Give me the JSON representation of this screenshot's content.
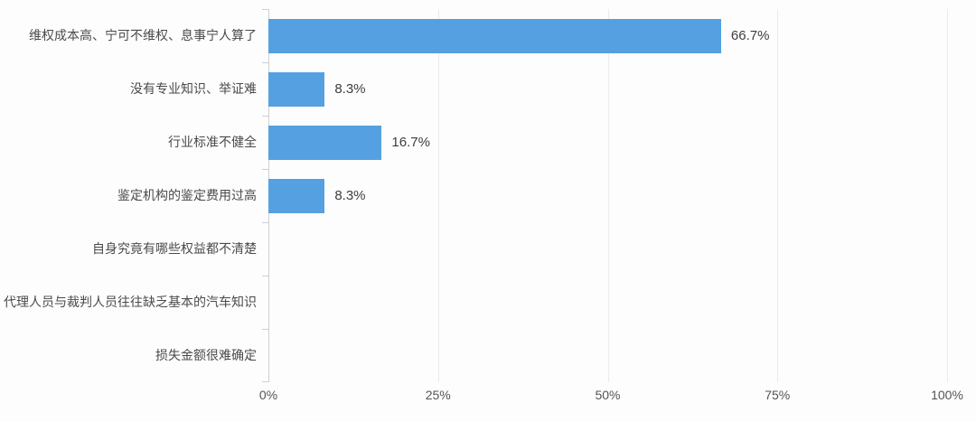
{
  "chart_data": {
    "type": "bar",
    "orientation": "horizontal",
    "title": "",
    "categories": [
      "维权成本高、宁可不维权、息事宁人算了",
      "没有专业知识、举证难",
      "行业标准不健全",
      "鉴定机构的鉴定费用过高",
      "自身究竟有哪些权益都不清楚",
      "代理人员与裁判人员往往缺乏基本的汽车知识",
      "损失金额很难确定"
    ],
    "values": [
      66.7,
      8.3,
      16.7,
      8.3,
      0,
      0,
      0
    ],
    "value_labels": [
      "66.7%",
      "8.3%",
      "16.7%",
      "8.3%",
      "",
      "",
      ""
    ],
    "x_ticks": [
      "0%",
      "25%",
      "50%",
      "75%",
      "100%"
    ],
    "xlim": [
      0,
      100
    ],
    "xlabel": "",
    "ylabel": "",
    "grid": true,
    "legend_position": "none",
    "bar_color": "#55a0e0",
    "gridline_color": "#ebebee",
    "axis_color": "#cfcfd4",
    "label_text_color": "#4a4a4a",
    "value_text_color": "#3d3d3d"
  }
}
